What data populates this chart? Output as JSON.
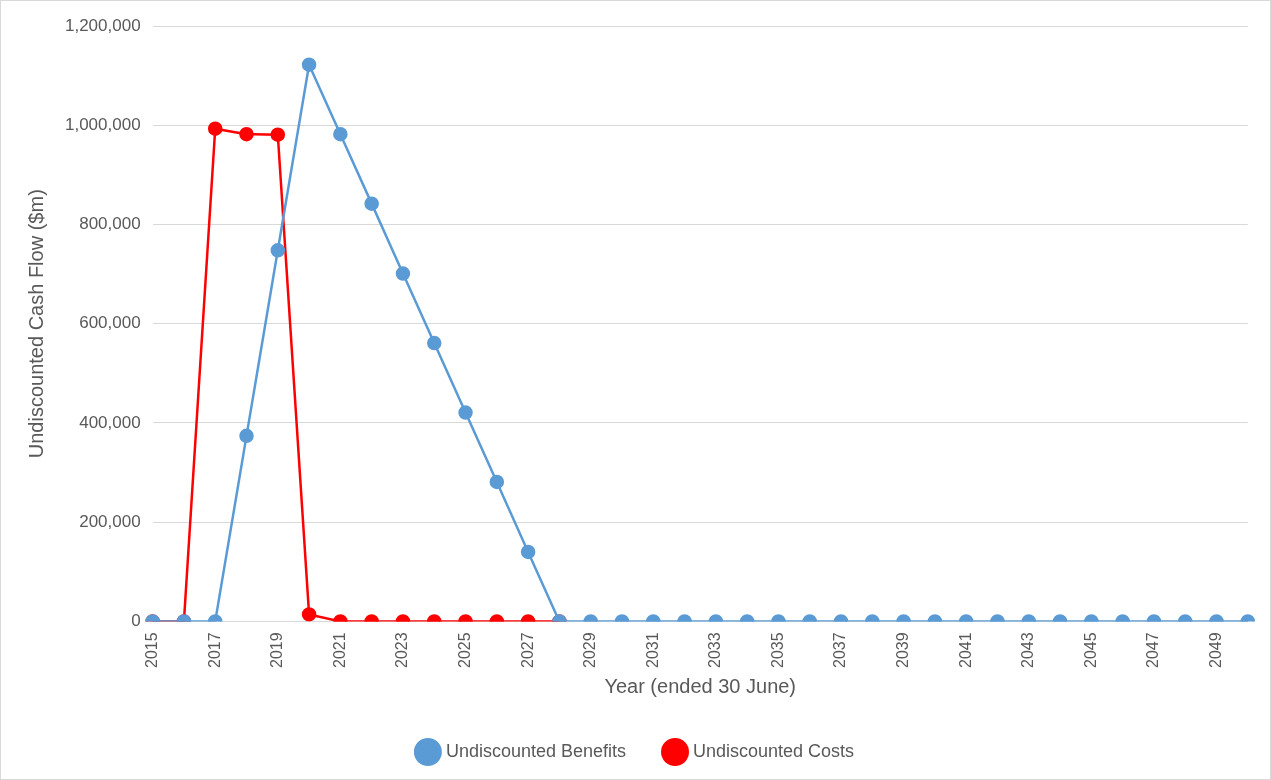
{
  "chart_data": {
    "type": "line",
    "xlabel": "Year (ended 30 June)",
    "ylabel": "Undiscounted Cash Flow ($m)",
    "categories": [
      "2015",
      null,
      "2017",
      null,
      "2019",
      null,
      "2021",
      null,
      "2023",
      null,
      "2025",
      null,
      "2027",
      null,
      "2029",
      null,
      "2031",
      null,
      "2033",
      null,
      "2035",
      null,
      "2037",
      null,
      "2039",
      null,
      "2041",
      null,
      "2043",
      null,
      "2045",
      null,
      "2047",
      null,
      "2049",
      null
    ],
    "series": [
      {
        "name": "Undiscounted Costs",
        "color": "#ff0000",
        "values": [
          0,
          0,
          993000,
          982000,
          981000,
          14000,
          0,
          0,
          0,
          0,
          0,
          0,
          0,
          0,
          null,
          null,
          null,
          null,
          null,
          null,
          null,
          null,
          null,
          null,
          null,
          null,
          null,
          null,
          null,
          null,
          null,
          null,
          null,
          null,
          null,
          null
        ]
      },
      {
        "name": "Undiscounted Benefits",
        "color": "#5b9bd5",
        "values": [
          0,
          0,
          0,
          374000,
          748000,
          1122000,
          982000,
          842000,
          701000,
          561000,
          421000,
          281000,
          140000,
          0,
          0,
          0,
          0,
          0,
          0,
          0,
          0,
          0,
          0,
          0,
          0,
          0,
          0,
          0,
          0,
          0,
          0,
          0,
          0,
          0,
          0,
          0
        ]
      }
    ],
    "ylim": [
      0,
      1200000
    ],
    "yticks": [
      {
        "value": 0,
        "label": "0"
      },
      {
        "value": 200000,
        "label": "200,000"
      },
      {
        "value": 400000,
        "label": "400,000"
      },
      {
        "value": 600000,
        "label": "600,000"
      },
      {
        "value": 800000,
        "label": "800,000"
      },
      {
        "value": 1000000,
        "label": "1,000,000"
      },
      {
        "value": 1200000,
        "label": "1,200,000"
      }
    ],
    "grid": "y",
    "legend": "bottom",
    "marker": "circle",
    "line_style": "solid"
  }
}
